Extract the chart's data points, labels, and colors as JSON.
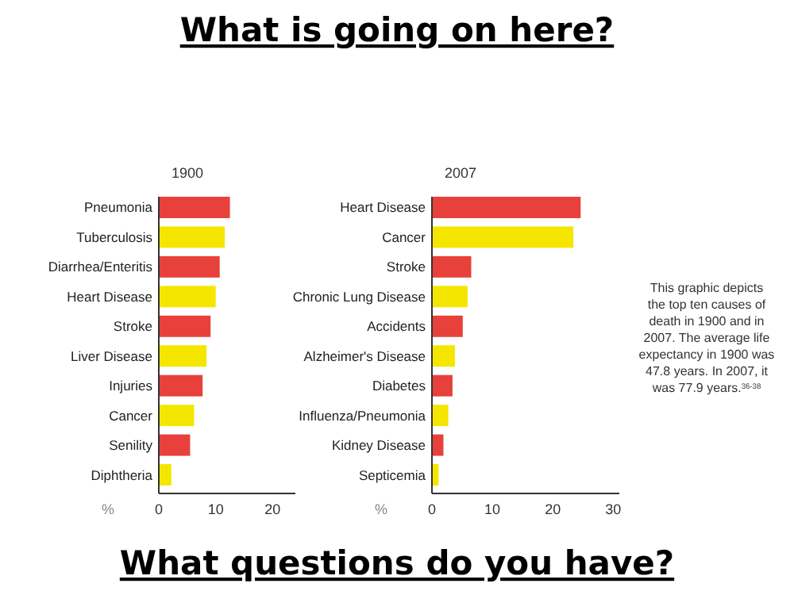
{
  "chart_data": [
    {
      "type": "other",
      "title": "What is going on here?",
      "annotations": [
        "What questions do you have?"
      ]
    },
    {
      "type": "bar",
      "orientation": "horizontal",
      "title": "1900",
      "xlabel": "%",
      "categories": [
        "Pneumonia",
        "Tuberculosis",
        "Diarrhea/Enteritis",
        "Heart Disease",
        "Stroke",
        "Liver Disease",
        "Injuries",
        "Cancer",
        "Senility",
        "Diphtheria"
      ],
      "values": [
        12.5,
        11.6,
        10.7,
        10,
        9.1,
        8.4,
        7.7,
        6.2,
        5.5,
        2.2
      ],
      "colors": [
        "#e8403a",
        "#f5e600",
        "#e8403a",
        "#f5e600",
        "#e8403a",
        "#f5e600",
        "#e8403a",
        "#f5e600",
        "#e8403a",
        "#f5e600"
      ],
      "xlim": [
        0,
        24
      ],
      "xticks": [
        0,
        10,
        20
      ]
    },
    {
      "type": "bar",
      "orientation": "horizontal",
      "title": "2007",
      "xlabel": "%",
      "categories": [
        "Heart Disease",
        "Cancer",
        "Stroke",
        "Chronic Lung Disease",
        "Accidents",
        "Alzheimer's Disease",
        "Diabetes",
        "Influenza/Pneumonia",
        "Kidney Disease",
        "Septicemia"
      ],
      "values": [
        24.6,
        23.4,
        6.5,
        5.9,
        5.1,
        3.8,
        3.4,
        2.7,
        1.9,
        1.1
      ],
      "colors": [
        "#e8403a",
        "#f5e600",
        "#e8403a",
        "#f5e600",
        "#e8403a",
        "#f5e600",
        "#e8403a",
        "#f5e600",
        "#e8403a",
        "#f5e600"
      ],
      "xlim": [
        0,
        31
      ],
      "xticks": [
        0,
        10,
        20,
        30
      ],
      "annotations": [
        "This graphic depicts the top ten causes of death in 1900 and in 2007. The average life expectancy in 1900 was 47.8 years. In 2007, it was 77.9 years.$^{36-38}$"
      ]
    }
  ]
}
